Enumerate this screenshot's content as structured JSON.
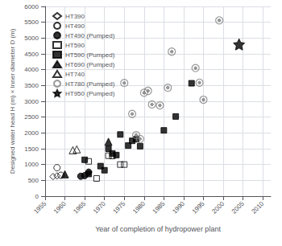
{
  "chart_data": {
    "type": "scatter",
    "xlabel": "Year of completion of hydropower plant",
    "ylabel": "Designed water head H (m) × Inner diameter D (m)",
    "xlim": [
      1955,
      2012
    ],
    "ylim": [
      0,
      6000
    ],
    "xticks": [
      1955,
      1960,
      1965,
      1970,
      1975,
      1980,
      1985,
      1990,
      1995,
      2000,
      2005,
      2010
    ],
    "yticks": [
      0,
      500,
      1000,
      1500,
      2000,
      2500,
      3000,
      3500,
      4000,
      4500,
      5000,
      5500,
      6000
    ],
    "grid": true,
    "legend": "upper left",
    "series": [
      {
        "name": "HT390",
        "marker": "diamond-open",
        "color": "black",
        "x": [
          1957,
          1958
        ],
        "values": [
          620,
          640
        ]
      },
      {
        "name": "HT490",
        "marker": "circle-open",
        "color": "black",
        "x": [
          1958,
          1959
        ],
        "values": [
          900,
          660
        ]
      },
      {
        "name": "HT490 (Pumped)",
        "marker": "circle",
        "color": "black",
        "x": [
          1964,
          1965,
          1966
        ],
        "values": [
          630,
          650,
          760
        ]
      },
      {
        "name": "HT590",
        "marker": "square-open",
        "color": "black",
        "x": [
          1966,
          1968,
          1971,
          1972,
          1974,
          1975
        ],
        "values": [
          1100,
          560,
          1280,
          1270,
          1000,
          1000
        ]
      },
      {
        "name": "HT590 (Pumped)",
        "marker": "square",
        "color": "black",
        "x": [
          1965,
          1966,
          1969,
          1970,
          1971,
          1972,
          1973,
          1974,
          1976,
          1977,
          1978,
          1979,
          1985,
          1988,
          1992
        ],
        "values": [
          1150,
          700,
          950,
          820,
          1500,
          1350,
          1300,
          1950,
          1600,
          1750,
          1800,
          1580,
          2080,
          2520,
          3570
        ]
      },
      {
        "name": "HT690 (Pumped)",
        "marker": "triangle",
        "color": "black",
        "x": [
          1960,
          1971
        ],
        "values": [
          690,
          1720
        ]
      },
      {
        "name": "HT740",
        "marker": "triangle-open",
        "color": "black",
        "x": [
          1962,
          1963
        ],
        "values": [
          1450,
          1480
        ]
      },
      {
        "name": "HT780 (Pumped)",
        "marker": "circle-dot",
        "color": "gray",
        "x": [
          1975,
          1977,
          1978,
          1979,
          1980,
          1981,
          1982,
          1984,
          1986,
          1987,
          1993,
          1994,
          1995,
          1999
        ],
        "values": [
          3580,
          2600,
          1930,
          1810,
          3270,
          3330,
          2900,
          2870,
          3430,
          4570,
          4050,
          3590,
          3050,
          5560
        ]
      },
      {
        "name": "HT950 (Pumped)",
        "marker": "star",
        "color": "black",
        "x": [
          2004
        ],
        "values": [
          4800
        ]
      }
    ]
  }
}
